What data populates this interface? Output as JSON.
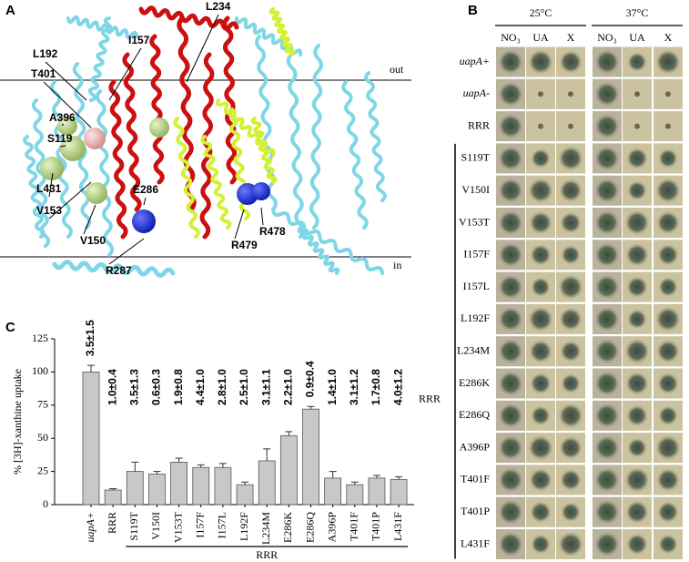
{
  "panel_a": {
    "letter": "A",
    "out": "out",
    "in": "in",
    "residues": [
      "L234",
      "I157",
      "L192",
      "T401",
      "A396",
      "S119",
      "L431",
      "V153",
      "E286",
      "V150",
      "R287",
      "R479",
      "R478"
    ]
  },
  "panel_b": {
    "letter": "B",
    "temperatures": [
      "25°C",
      "37°C"
    ],
    "media": [
      "NO₃",
      "UA",
      "X"
    ],
    "strains": [
      "uapA+",
      "uapA-",
      "RRR",
      "S119T",
      "V150I",
      "V153T",
      "I157F",
      "I157L",
      "L192F",
      "L234M",
      "E286K",
      "E286Q",
      "A396P",
      "T401F",
      "T401P",
      "L431F"
    ],
    "group_label": "RRR"
  },
  "chart_data": {
    "type": "bar",
    "panel": "C",
    "ylabel": "% [3H]-xanthine uptake",
    "categories": [
      "uapA+",
      "RRR",
      "S119T",
      "V150I",
      "V153T",
      "I157F",
      "I157L",
      "L192F",
      "L234M",
      "E286K",
      "E286Q",
      "A396P",
      "T401F",
      "T401P",
      "L431F"
    ],
    "values": [
      100,
      11,
      25,
      23,
      32,
      28,
      28,
      15,
      33,
      52,
      72,
      20,
      15,
      20,
      19
    ],
    "errors": [
      5,
      1,
      7,
      2,
      3,
      2,
      3,
      2,
      9,
      3,
      2,
      5,
      2,
      2,
      2
    ],
    "color": "#c8c8c8",
    "ylim": [
      0,
      125
    ],
    "yticks": [
      0,
      25,
      50,
      75,
      100,
      125
    ],
    "annotations": [
      "3.5±1.5",
      "1.0±0.4",
      "3.5±1.3",
      "0.6±0.3",
      "1.9±0.8",
      "4.4±1.0",
      "2.8±1.0",
      "2.5±1.0",
      "3.1±1.1",
      "2.2±1.0",
      "0.9±0.4",
      "1.4±1.0",
      "3.1±1.2",
      "1.7±0.8",
      "4.0±1.2"
    ],
    "annotation_color": "#a01c1c",
    "group_label": "RRR"
  }
}
